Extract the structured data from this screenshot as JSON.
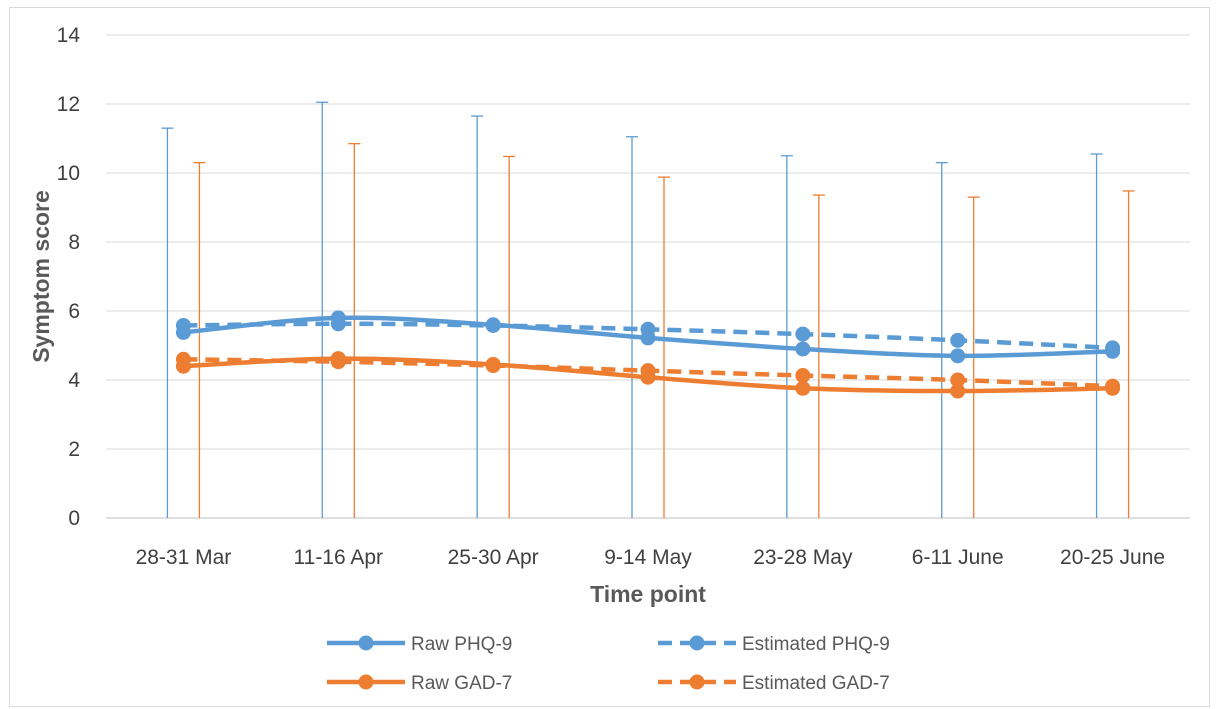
{
  "chart_data": {
    "type": "line",
    "title": "",
    "xlabel": "Time point",
    "ylabel": "Symptom score",
    "ylim": [
      0,
      14
    ],
    "yticks": [
      0,
      2,
      4,
      6,
      8,
      10,
      12,
      14
    ],
    "grid": true,
    "legend_position": "bottom",
    "categories": [
      "28-31 Mar",
      "11-16 Apr",
      "25-30 Apr",
      "9-14 May",
      "23-28 May",
      "6-11 June",
      "20-25 June"
    ],
    "series": [
      {
        "name": "Raw PHQ-9",
        "style": "solid",
        "color": "#5b9bd5",
        "values": [
          5.38,
          5.8,
          5.6,
          5.22,
          4.9,
          4.7,
          4.83
        ],
        "error_upper": [
          11.3,
          12.05,
          11.65,
          11.05,
          10.5,
          10.3,
          10.55
        ],
        "error_lower": [
          0,
          0,
          0,
          0,
          0,
          0,
          0
        ]
      },
      {
        "name": "Estimated PHQ-9",
        "style": "dashed",
        "color": "#5b9bd5",
        "values": [
          5.58,
          5.63,
          5.58,
          5.47,
          5.33,
          5.15,
          4.93
        ]
      },
      {
        "name": "Raw GAD-7",
        "style": "solid",
        "color": "#ed7d31",
        "values": [
          4.4,
          4.62,
          4.45,
          4.08,
          3.76,
          3.68,
          3.76
        ],
        "error_upper": [
          10.3,
          10.85,
          10.48,
          9.88,
          9.36,
          9.3,
          9.48
        ],
        "error_lower": [
          0,
          0,
          0,
          0,
          0,
          0,
          0
        ]
      },
      {
        "name": "Estimated GAD-7",
        "style": "dashed",
        "color": "#ed7d31",
        "values": [
          4.6,
          4.53,
          4.42,
          4.27,
          4.13,
          4.0,
          3.82
        ]
      }
    ]
  }
}
